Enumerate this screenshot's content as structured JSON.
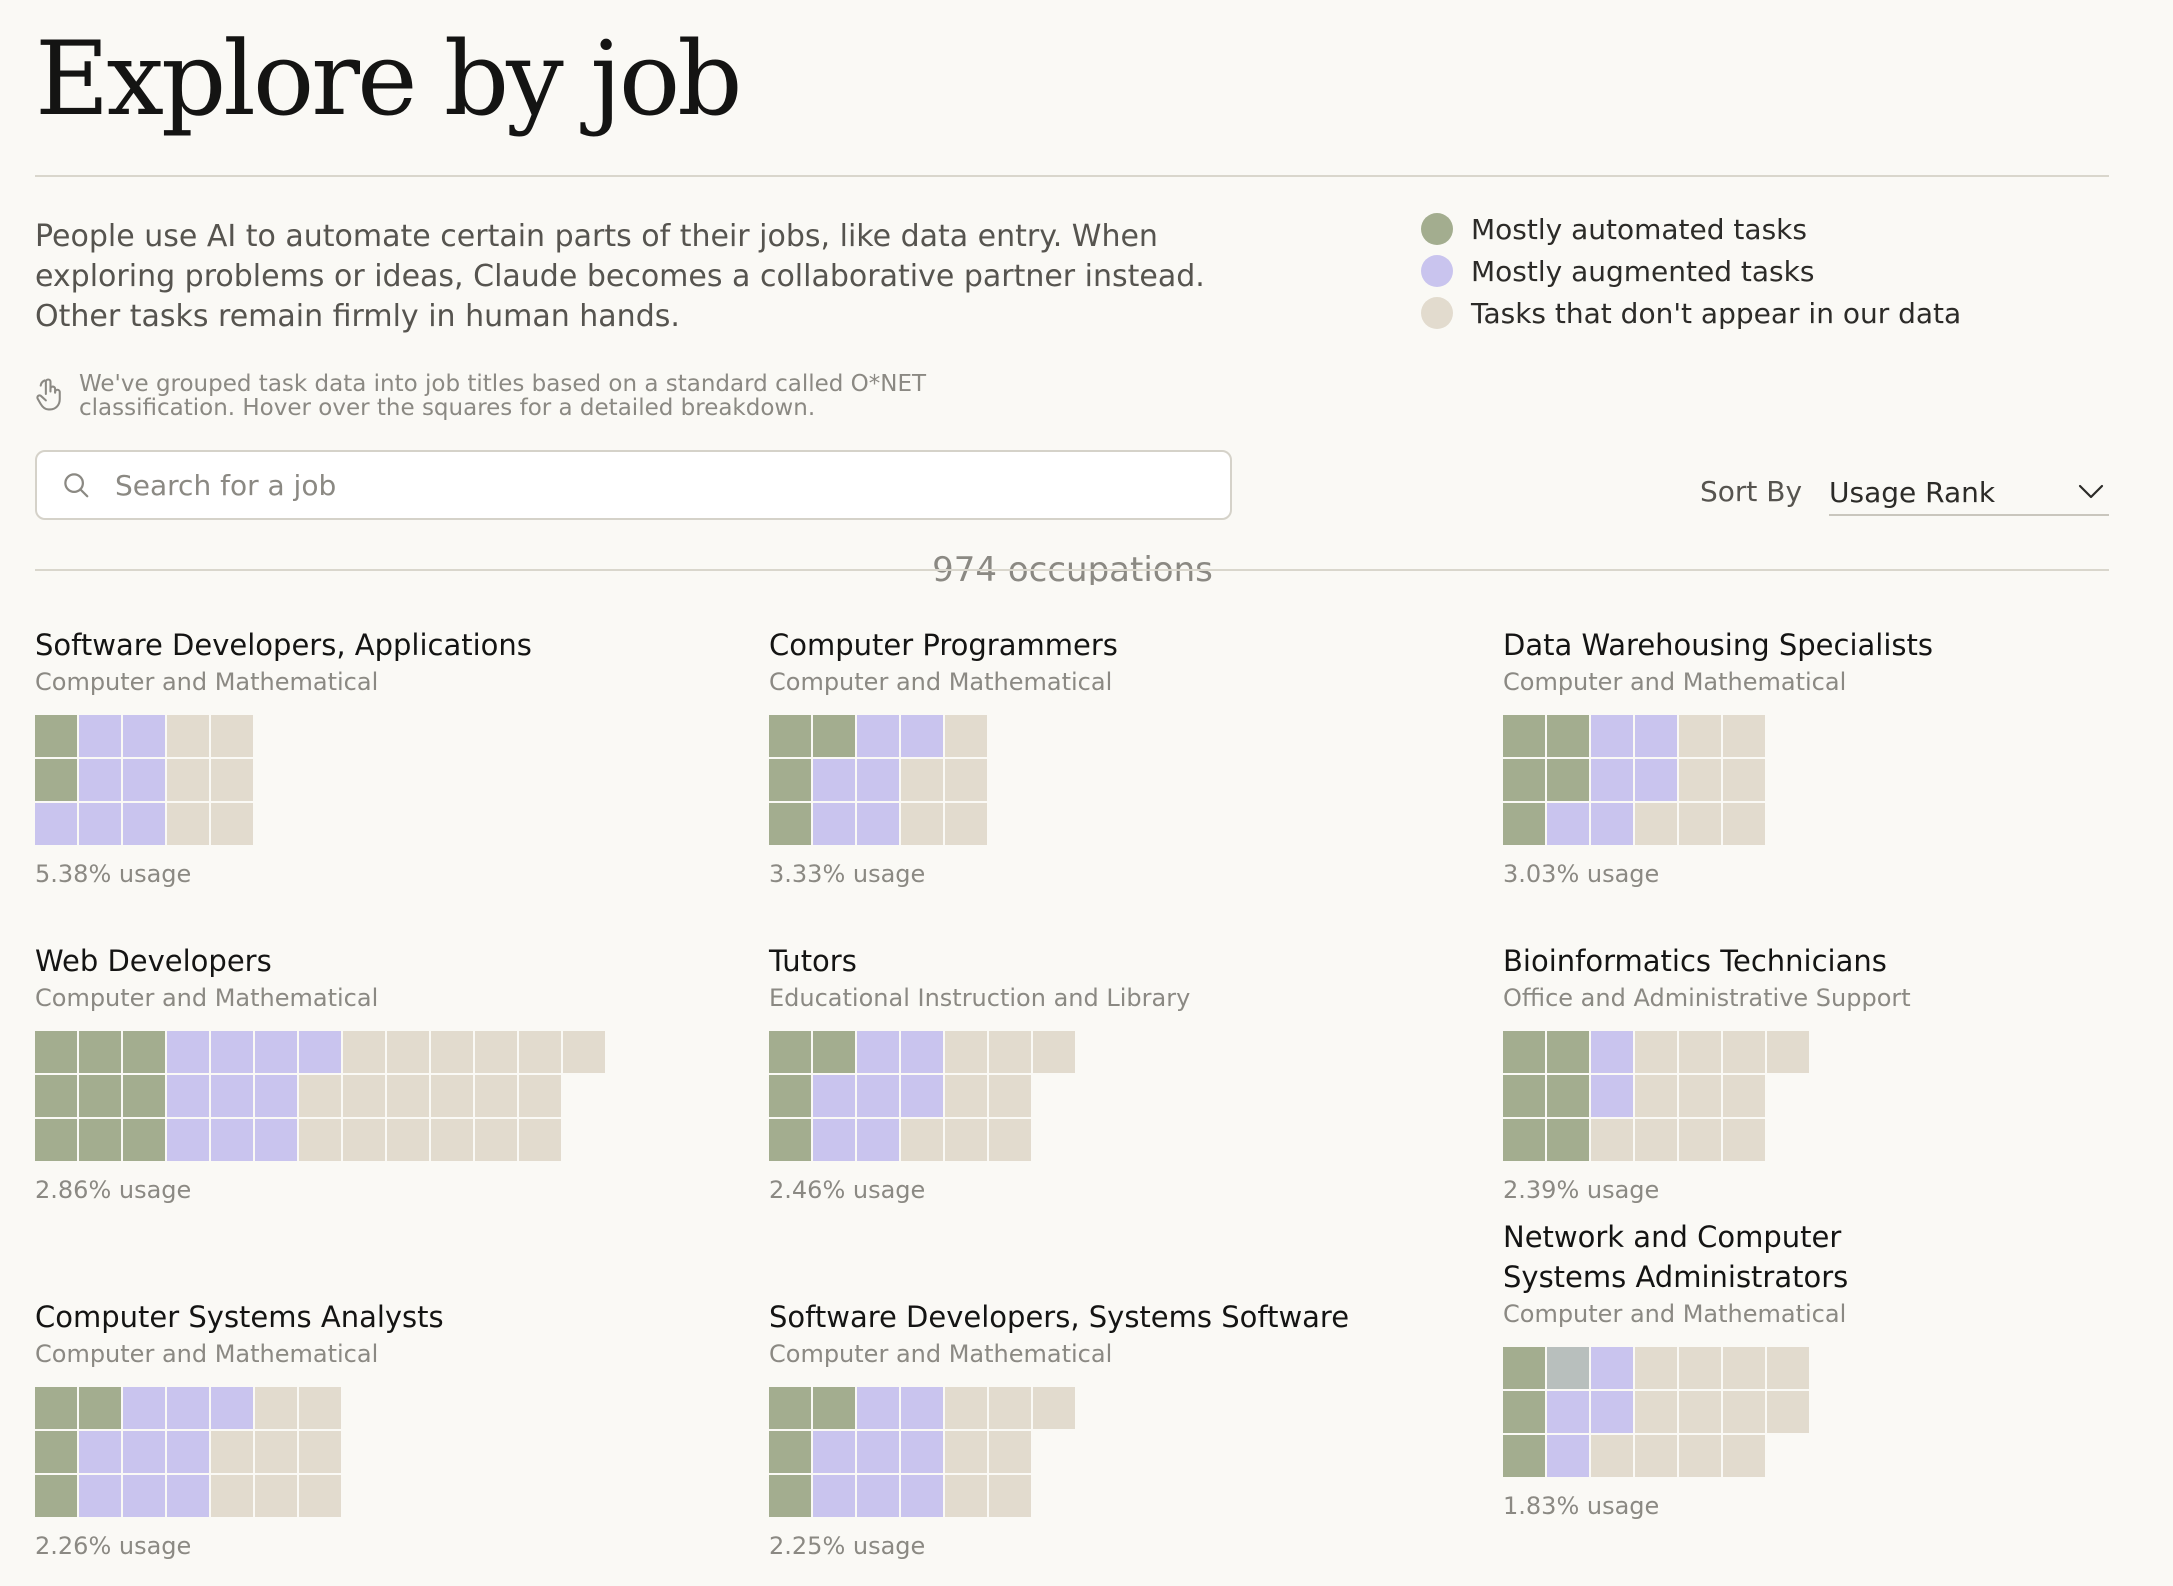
{
  "page_title": "Explore by job",
  "intro": "People use AI to automate certain parts of their jobs, like data entry. When exploring problems or ideas, Claude becomes a collaborative partner instead. Other tasks remain firmly in human hands.",
  "legend": [
    {
      "label": "Mostly automated tasks",
      "color": "#a3ad8f"
    },
    {
      "label": "Mostly augmented tasks",
      "color": "#c9c4ee"
    },
    {
      "label": "Tasks that don't appear in our data",
      "color": "#e2dbce"
    }
  ],
  "note": "We've grouped task data into job titles based on a standard called O*NET classification. Hover over the squares for a detailed breakdown.",
  "search": {
    "placeholder": "Search for a job"
  },
  "sort": {
    "label": "Sort By",
    "value": "Usage Rank"
  },
  "count_text": "974 occupations",
  "cell_colors": {
    "A": "#a3ad8f",
    "U": "#c9c4ee",
    "N": "#e2dbce",
    "G": "#b8bfbd"
  },
  "jobs": [
    {
      "title": "Software Developers, Applications",
      "category": "Computer and Mathematical",
      "usage": "5.38% usage",
      "grid": [
        "AUUNN",
        "AUUNN",
        "UUUNN"
      ]
    },
    {
      "title": "Computer Programmers",
      "category": "Computer and Mathematical",
      "usage": "3.33% usage",
      "grid": [
        "AAUUN",
        "AUUNN",
        "AUUNN"
      ]
    },
    {
      "title": "Data Warehousing Specialists",
      "category": "Computer and Mathematical",
      "usage": "3.03% usage",
      "grid": [
        "AAUUNN",
        "AAUUNN",
        "AUUNNN"
      ]
    },
    {
      "title": "Web Developers",
      "category": "Computer and Mathematical",
      "usage": "2.86% usage",
      "grid": [
        "AAAUUUUNNNNNN",
        "AAAUUUNNNNNN",
        "AAAUUUNNNNNN"
      ]
    },
    {
      "title": "Tutors",
      "category": "Educational Instruction and Library",
      "usage": "2.46% usage",
      "grid": [
        "AAUUNNN",
        "AUUUNN",
        "AUUNNN"
      ]
    },
    {
      "title": "Bioinformatics Technicians",
      "category": "Office and Administrative Support",
      "usage": "2.39% usage",
      "grid": [
        "AAUNNNN",
        "AAUNNN",
        "AANNNN"
      ]
    },
    {
      "title": "Computer Systems Analysts",
      "category": "Computer and Mathematical",
      "usage": "2.26% usage",
      "grid": [
        "AAUUUNN",
        "AUUUNNN",
        "AUUUNNN"
      ]
    },
    {
      "title": "Software Developers, Systems Software",
      "category": "Computer and Mathematical",
      "usage": "2.25% usage",
      "grid": [
        "AAUUNNN",
        "AUUUNN",
        "AUUUNN"
      ]
    },
    {
      "title": "Network and Computer Systems Administrators",
      "category": "Computer and Mathematical",
      "usage": "1.83% usage",
      "grid": [
        "AGUNNNN",
        "AUUNNNN",
        "AUNNNN"
      ]
    }
  ]
}
